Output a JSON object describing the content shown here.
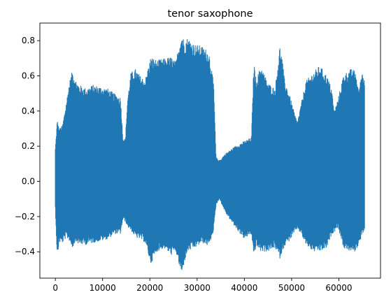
{
  "chart_data": {
    "type": "line",
    "title": "tenor saxophone",
    "xlabel": "",
    "ylabel": "",
    "xlim": [
      -3277,
      68813
    ],
    "ylim": [
      -0.55,
      0.9
    ],
    "x_ticks": [
      0,
      10000,
      20000,
      30000,
      40000,
      50000,
      60000
    ],
    "x_tick_labels": [
      "0",
      "10000",
      "20000",
      "30000",
      "40000",
      "50000",
      "60000"
    ],
    "y_ticks": [
      -0.4,
      -0.2,
      0.0,
      0.2,
      0.4,
      0.6,
      0.8
    ],
    "y_tick_labels": [
      "−0.4",
      "−0.2",
      "0.0",
      "0.2",
      "0.4",
      "0.6",
      "0.8"
    ],
    "grid": false,
    "legend": "none",
    "series": [
      {
        "color": "#1f77b4",
        "description_of_envelope": "dense audio waveform; envelope given as sample index with max and min amplitude",
        "x": [
          0,
          400,
          800,
          1500,
          2300,
          3000,
          3600,
          4300,
          5000,
          6500,
          8000,
          9500,
          11000,
          12500,
          13800,
          14300,
          14800,
          15300,
          16000,
          17000,
          18000,
          19000,
          20200,
          21500,
          23000,
          24500,
          25500,
          26200,
          26800,
          27300,
          28000,
          29500,
          31000,
          32500,
          33500,
          34000,
          34700,
          36000,
          38000,
          40000,
          41500,
          42000,
          42500,
          43500,
          45000,
          46500,
          47500,
          48000,
          48500,
          49500,
          50500,
          51200,
          52000,
          53000,
          54500,
          56000,
          57500,
          58500,
          59000,
          59800,
          61000,
          62500,
          63500,
          64200,
          65000,
          65500
        ],
        "max": [
          0.19,
          0.35,
          0.3,
          0.32,
          0.45,
          0.57,
          0.63,
          0.58,
          0.55,
          0.53,
          0.55,
          0.54,
          0.53,
          0.5,
          0.48,
          0.25,
          0.24,
          0.48,
          0.62,
          0.64,
          0.6,
          0.58,
          0.71,
          0.69,
          0.7,
          0.71,
          0.68,
          0.79,
          0.84,
          0.8,
          0.82,
          0.78,
          0.77,
          0.74,
          0.56,
          0.14,
          0.12,
          0.16,
          0.2,
          0.23,
          0.25,
          0.68,
          0.58,
          0.66,
          0.56,
          0.53,
          0.77,
          0.7,
          0.58,
          0.5,
          0.4,
          0.34,
          0.44,
          0.57,
          0.62,
          0.66,
          0.6,
          0.53,
          0.4,
          0.47,
          0.61,
          0.64,
          0.63,
          0.52,
          0.64,
          0.56
        ],
        "min": [
          -0.16,
          -0.44,
          -0.35,
          -0.35,
          -0.32,
          -0.34,
          -0.38,
          -0.34,
          -0.36,
          -0.36,
          -0.35,
          -0.34,
          -0.33,
          -0.3,
          -0.3,
          -0.22,
          -0.23,
          -0.26,
          -0.28,
          -0.32,
          -0.33,
          -0.35,
          -0.47,
          -0.4,
          -0.38,
          -0.42,
          -0.4,
          -0.48,
          -0.53,
          -0.46,
          -0.4,
          -0.38,
          -0.35,
          -0.37,
          -0.28,
          -0.14,
          -0.1,
          -0.18,
          -0.26,
          -0.33,
          -0.3,
          -0.43,
          -0.37,
          -0.4,
          -0.4,
          -0.38,
          -0.44,
          -0.4,
          -0.37,
          -0.34,
          -0.3,
          -0.27,
          -0.3,
          -0.36,
          -0.4,
          -0.4,
          -0.38,
          -0.3,
          -0.29,
          -0.26,
          -0.38,
          -0.4,
          -0.4,
          -0.36,
          -0.3,
          -0.28
        ]
      }
    ]
  }
}
